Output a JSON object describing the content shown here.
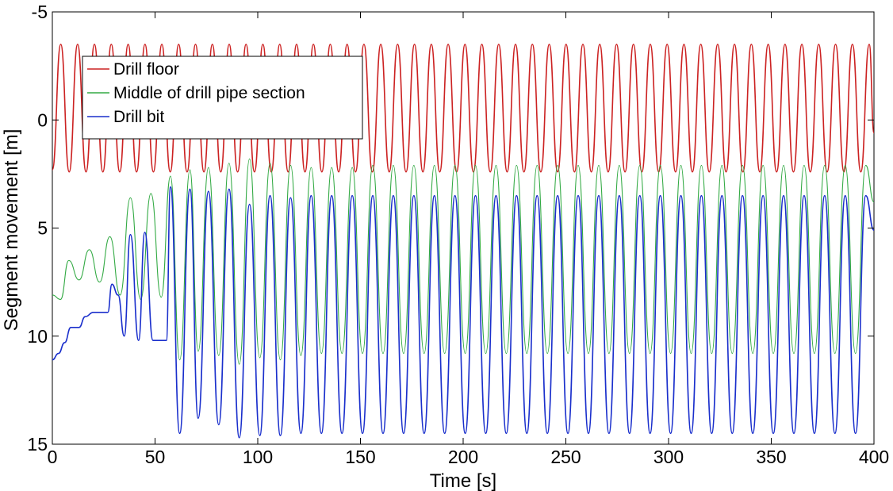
{
  "chart_data": {
    "type": "line",
    "title": "",
    "xlabel": "Time [s]",
    "ylabel": "Segment movement [m]",
    "xlim": [
      0,
      400
    ],
    "ylim": [
      -5,
      15
    ],
    "y_reversed": true,
    "grid": false,
    "legend_position": "top-left",
    "x_ticks": [
      0,
      50,
      100,
      150,
      200,
      250,
      300,
      350,
      400
    ],
    "y_ticks": [
      -5,
      0,
      5,
      10,
      15
    ],
    "x_tick_labels": [
      "0",
      "50",
      "100",
      "150",
      "200",
      "250",
      "300",
      "350",
      "400"
    ],
    "y_tick_labels": [
      "-5",
      "0",
      "5",
      "10",
      "15"
    ],
    "series": [
      {
        "name": "Drill floor",
        "color": "#cc2222",
        "style": "solid",
        "oscillation": {
          "period_s": 8.2,
          "min_m": -3.5,
          "max_m": 2.4
        },
        "x": [
          0,
          4.1,
          8.2,
          12.3,
          16.4,
          20.5,
          24.6,
          28.7,
          32.8,
          36.9,
          41.0,
          45.1,
          49.2,
          53.3,
          57.4,
          61.5,
          65.6,
          69.7,
          73.8,
          77.9,
          82.0,
          86.1,
          90.2,
          94.3,
          98.4,
          102.5,
          106.6,
          110.7,
          114.8,
          118.9,
          123.0,
          127.1,
          131.2,
          135.3,
          139.4,
          143.5,
          147.6,
          151.7,
          155.8,
          159.9,
          164.0,
          168.1,
          172.2,
          176.3,
          180.4,
          184.5,
          188.6,
          192.7,
          196.8,
          200.9,
          205.0,
          209.1,
          213.2,
          217.3,
          221.4,
          225.5,
          229.6,
          233.7,
          237.8,
          241.9,
          246.0,
          250.1,
          254.2,
          258.3,
          262.4,
          266.5,
          270.6,
          274.7,
          278.8,
          282.9,
          287.0,
          291.1,
          295.2,
          299.3,
          303.4,
          307.5,
          311.6,
          315.7,
          319.8,
          323.9,
          328.0,
          332.1,
          336.2,
          340.3,
          344.4,
          348.5,
          352.6,
          356.7,
          360.8,
          364.9,
          369.0,
          373.1,
          377.2,
          381.3,
          385.4,
          389.5,
          393.6,
          397.7,
          400
        ],
        "y": [
          2.3,
          -3.5,
          2.4,
          -3.5,
          2.4,
          -3.5,
          2.4,
          -3.5,
          2.4,
          -3.5,
          2.4,
          -3.5,
          2.4,
          -3.5,
          2.4,
          -3.5,
          2.4,
          -3.5,
          2.4,
          -3.5,
          2.4,
          -3.5,
          2.4,
          -3.5,
          2.4,
          -3.5,
          2.4,
          -3.5,
          2.4,
          -3.5,
          2.4,
          -3.5,
          2.4,
          -3.5,
          2.4,
          -3.5,
          2.4,
          -3.5,
          2.4,
          -3.5,
          2.4,
          -3.5,
          2.4,
          -3.5,
          2.4,
          -3.5,
          2.4,
          -3.5,
          2.4,
          -3.5,
          2.4,
          -3.5,
          2.4,
          -3.5,
          2.4,
          -3.5,
          2.4,
          -3.5,
          2.4,
          -3.5,
          2.4,
          -3.5,
          2.4,
          -3.5,
          2.4,
          -3.5,
          2.4,
          -3.5,
          2.4,
          -3.5,
          2.4,
          -3.5,
          2.4,
          -3.5,
          2.4,
          -3.5,
          2.4,
          -3.5,
          2.4,
          -3.5,
          2.4,
          -3.5,
          2.4,
          -3.5,
          2.4,
          -3.5,
          2.4,
          -3.5,
          2.4,
          -3.5,
          2.4,
          -3.5,
          2.4,
          -3.5,
          2.4,
          -3.5,
          2.4,
          -3.5,
          0.6
        ]
      },
      {
        "name": "Middle of drill pipe section",
        "color": "#33aa44",
        "style": "solid",
        "x": [
          0,
          4,
          8,
          13,
          18,
          23,
          28,
          33,
          38,
          43,
          48,
          53,
          57.5,
          62,
          67,
          71,
          76,
          81,
          86,
          91,
          96,
          101,
          106,
          111,
          116,
          121,
          126,
          131,
          136,
          141,
          146,
          151,
          156,
          161,
          166,
          171,
          176,
          181,
          186,
          191,
          196,
          201,
          206,
          211,
          216,
          221,
          226,
          231,
          236,
          241,
          246,
          251,
          256,
          261,
          266,
          271,
          276,
          281,
          286,
          291,
          296,
          301,
          306,
          311,
          316,
          321,
          326,
          331,
          336,
          341,
          346,
          351,
          356,
          361,
          366,
          371,
          376,
          381,
          386,
          391,
          396,
          400
        ],
        "y": [
          8.1,
          8.3,
          6.5,
          7.4,
          6.0,
          7.5,
          5.4,
          8.1,
          3.6,
          8.3,
          3.4,
          8.2,
          2.6,
          11.1,
          2.3,
          10.7,
          2.2,
          10.9,
          2.0,
          11.3,
          1.8,
          11.0,
          2.0,
          11.1,
          2.1,
          10.9,
          2.2,
          10.8,
          2.2,
          10.8,
          2.2,
          10.8,
          2.1,
          10.8,
          2.1,
          10.8,
          2.1,
          10.8,
          2.1,
          10.8,
          2.1,
          10.8,
          2.1,
          10.8,
          2.1,
          10.8,
          2.1,
          10.8,
          2.1,
          10.8,
          2.1,
          10.8,
          2.1,
          10.8,
          2.1,
          10.8,
          2.1,
          10.8,
          2.1,
          10.8,
          2.1,
          10.8,
          2.1,
          10.8,
          2.1,
          10.8,
          2.1,
          10.8,
          2.1,
          10.8,
          2.1,
          10.8,
          2.1,
          10.8,
          2.1,
          10.8,
          2.1,
          10.8,
          2.1,
          10.8,
          2.1,
          3.8
        ]
      },
      {
        "name": "Drill bit",
        "color": "#1a2fcc",
        "style": "solid",
        "x": [
          0,
          3,
          6,
          9,
          13,
          16,
          20,
          23,
          27,
          29,
          32,
          35,
          38,
          42,
          45,
          49,
          52,
          55.5,
          57.5,
          62,
          67,
          71,
          76,
          81,
          86,
          91,
          96,
          101,
          106,
          111,
          116,
          121,
          126,
          131,
          136,
          141,
          146,
          151,
          156,
          161,
          166,
          171,
          176,
          181,
          186,
          191,
          196,
          201,
          206,
          211,
          216,
          221,
          226,
          231,
          236,
          241,
          246,
          251,
          256,
          261,
          266,
          271,
          276,
          281,
          286,
          291,
          296,
          301,
          306,
          311,
          316,
          321,
          326,
          331,
          336,
          341,
          346,
          351,
          356,
          361,
          366,
          371,
          376,
          381,
          386,
          391,
          396,
          400
        ],
        "y": [
          11.1,
          10.8,
          10.3,
          9.6,
          9.6,
          9.1,
          8.9,
          8.9,
          8.9,
          7.6,
          8.1,
          10.0,
          5.3,
          10.2,
          5.2,
          10.2,
          10.2,
          10.2,
          3.1,
          14.5,
          3.2,
          13.8,
          3.3,
          14.1,
          3.2,
          14.7,
          3.9,
          14.6,
          3.5,
          14.6,
          3.6,
          14.5,
          3.5,
          14.5,
          3.5,
          14.5,
          3.5,
          14.5,
          3.5,
          14.5,
          3.5,
          14.5,
          3.5,
          14.5,
          3.5,
          14.5,
          3.5,
          14.5,
          3.5,
          14.5,
          3.5,
          14.5,
          3.5,
          14.5,
          3.5,
          14.5,
          3.5,
          14.5,
          3.5,
          14.5,
          3.5,
          14.5,
          3.5,
          14.5,
          3.5,
          14.5,
          3.5,
          14.5,
          3.5,
          14.5,
          3.5,
          14.5,
          3.5,
          14.5,
          3.5,
          14.5,
          3.5,
          14.5,
          3.5,
          14.5,
          3.5,
          14.5,
          3.5,
          14.5,
          3.5,
          14.5,
          3.5,
          5.1
        ]
      }
    ]
  }
}
